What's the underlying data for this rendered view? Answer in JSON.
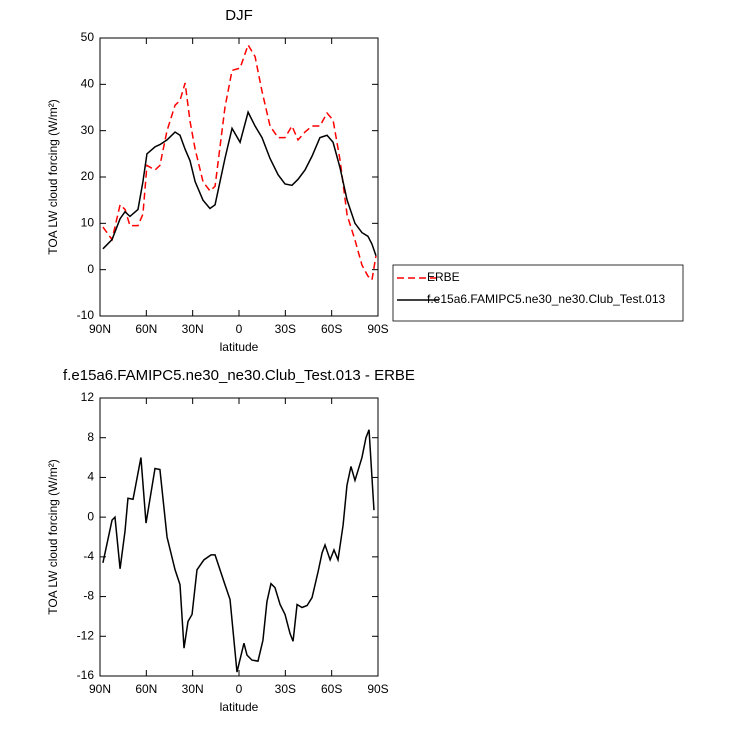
{
  "chart_data": [
    {
      "type": "line",
      "title": "DJF",
      "xlabel": "latitude",
      "ylabel": "TOA LW cloud forcing (W/m²)",
      "x": [
        88.1,
        82.2,
        77.0,
        73.8,
        70.6,
        65.4,
        62.2,
        59.6,
        54.4,
        51.2,
        46.6,
        41.4,
        38.2,
        34.9,
        31.7,
        28.4,
        23.3,
        18.8,
        15.5,
        9.1,
        4.5,
        -0.7,
        -5.9,
        -10.4,
        -14.9,
        -20.1,
        -25.3,
        -29.8,
        -34.3,
        -38.2,
        -42.7,
        -47.3,
        -52.4,
        -57.0,
        -60.9,
        -65.4,
        -70.0,
        -75.1,
        -79.6,
        -83.5,
        -86.1,
        -88.7
      ],
      "series": [
        {
          "name": "ERBE",
          "color": "#ff0000",
          "line_style": "dashed",
          "values": [
            9.2,
            6.5,
            14,
            13,
            9.5,
            9.5,
            12,
            22.5,
            21.5,
            22.5,
            30,
            35.5,
            36.5,
            40.3,
            32,
            26,
            19,
            17,
            18,
            35,
            43,
            43.5,
            48.5,
            46,
            38.5,
            31,
            28.5,
            28.5,
            31,
            28,
            29.7,
            31,
            31,
            33.8,
            32.3,
            23.7,
            11.8,
            6.4,
            1,
            -1.4,
            -2.2,
            3
          ]
        },
        {
          "name": "f.e15a6.FAMIPC5.ne30_ne30.Club_Test.013",
          "color": "#000000",
          "line_style": "solid",
          "values": [
            4.5,
            6.5,
            11,
            12.5,
            11.5,
            13,
            19,
            25,
            26.5,
            27,
            28,
            29.7,
            29,
            26,
            23.5,
            19,
            15,
            13.2,
            14,
            24,
            30.5,
            27.5,
            34,
            31,
            28.5,
            24,
            20.5,
            18.5,
            18.2,
            19.5,
            21.5,
            24.5,
            28.5,
            29,
            27.5,
            22,
            15,
            10,
            8,
            7.2,
            5.5,
            3
          ]
        }
      ],
      "xlim": [
        90,
        -90
      ],
      "xticks": [
        {
          "value": 90,
          "label": "90N"
        },
        {
          "value": 60,
          "label": "60N"
        },
        {
          "value": 30,
          "label": "30N"
        },
        0,
        {
          "value": -30,
          "label": "30S"
        },
        {
          "value": -60,
          "label": "60S"
        },
        {
          "value": -90,
          "label": "90S"
        }
      ],
      "ylim": [
        -10,
        50
      ],
      "yticks": [
        -10,
        0,
        10,
        20,
        30,
        40,
        50
      ],
      "legend": "right"
    },
    {
      "type": "line",
      "title": "f.e15a6.FAMIPC5.ne30_ne30.Club_Test.013 - ERBE",
      "xlabel": "latitude",
      "ylabel": "TOA LW cloud forcing (W/m²)",
      "x": [
        88.1,
        82.2,
        80.3,
        77.0,
        73.8,
        71.9,
        68.6,
        63.5,
        60.2,
        54.4,
        51.2,
        46.6,
        41.4,
        38.2,
        35.6,
        33.0,
        30.4,
        27.2,
        22.7,
        18.1,
        15.5,
        12.3,
        9.1,
        5.8,
        1.3,
        -3.2,
        -5.2,
        -8.4,
        -12.3,
        -15.5,
        -18.1,
        -20.7,
        -23.3,
        -26.6,
        -29.8,
        -33.0,
        -35.0,
        -37.6,
        -40.8,
        -44.1,
        -47.3,
        -51.2,
        -53.8,
        -55.7,
        -59.0,
        -61.5,
        -64.1,
        -67.4,
        -69.9,
        -72.5,
        -75.1,
        -79.6,
        -82.2,
        -84.2,
        -87.4
      ],
      "values": [
        -4.6,
        -0.3,
        0,
        -5.2,
        -1.4,
        1.9,
        1.8,
        6,
        -0.6,
        4.9,
        4.8,
        -2,
        -5.3,
        -6.8,
        -13.2,
        -10.5,
        -9.8,
        -5.3,
        -4.3,
        -3.8,
        -3.8,
        -5.3,
        -6.8,
        -8.3,
        -15.6,
        -12.7,
        -13.9,
        -14.4,
        -14.5,
        -12.4,
        -8.5,
        -6.7,
        -7.1,
        -8.8,
        -9.8,
        -11.7,
        -12.5,
        -8.8,
        -9.1,
        -8.9,
        -8.1,
        -5.5,
        -3.6,
        -2.8,
        -4.3,
        -3.3,
        -4.3,
        -0.8,
        3.2,
        5.1,
        3.7,
        6,
        8,
        8.8,
        0.7
      ],
      "color": "#000000",
      "line_style": "solid",
      "xlim": [
        90,
        -90
      ],
      "xticks": [
        {
          "value": 90,
          "label": "90N"
        },
        {
          "value": 60,
          "label": "60N"
        },
        {
          "value": 30,
          "label": "30N"
        },
        0,
        {
          "value": -30,
          "label": "30S"
        },
        {
          "value": -60,
          "label": "60S"
        },
        {
          "value": -90,
          "label": "90S"
        }
      ],
      "ylim": [
        -16,
        12
      ],
      "yticks": [
        -16,
        -12,
        -8,
        -4,
        0,
        4,
        8,
        12
      ]
    }
  ]
}
